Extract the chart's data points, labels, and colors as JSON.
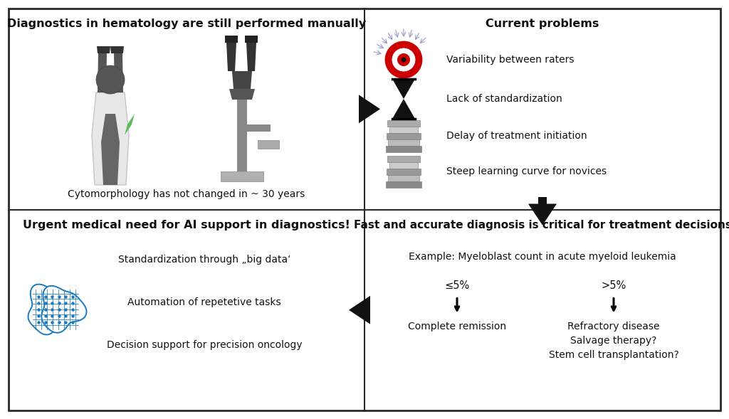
{
  "bg_color": "#ffffff",
  "border_color": "#2a2a2a",
  "panel_titles": {
    "tl": "Diagnostics in hematology are still performed manually",
    "tr": "Current problems",
    "bl": "Urgent medical need for AI support in diagnostics!",
    "br": "Fast and accurate diagnosis is critical for treatment decisions"
  },
  "tl_subtitle": "Cytomorphology has not changed in ~ 30 years",
  "tr_items": [
    "Variability between raters",
    "Lack of standardization",
    "Delay of treatment initiation",
    "Steep learning curve for novices"
  ],
  "bl_items": [
    "Standardization through „big data‘",
    "Automation of repetetive tasks",
    "Decision support for precision oncology"
  ],
  "br_subtitle": "Example: Myeloblast count in acute myeloid leukemia",
  "br_left_pct": "≤5%",
  "br_right_pct": ">5%",
  "br_left_label": "Complete remission",
  "br_right_labels": [
    "Refractory disease",
    "Salvage therapy?",
    "Stem cell transplantation?"
  ],
  "text_color": "#111111",
  "brain_color": "#1a7abf"
}
